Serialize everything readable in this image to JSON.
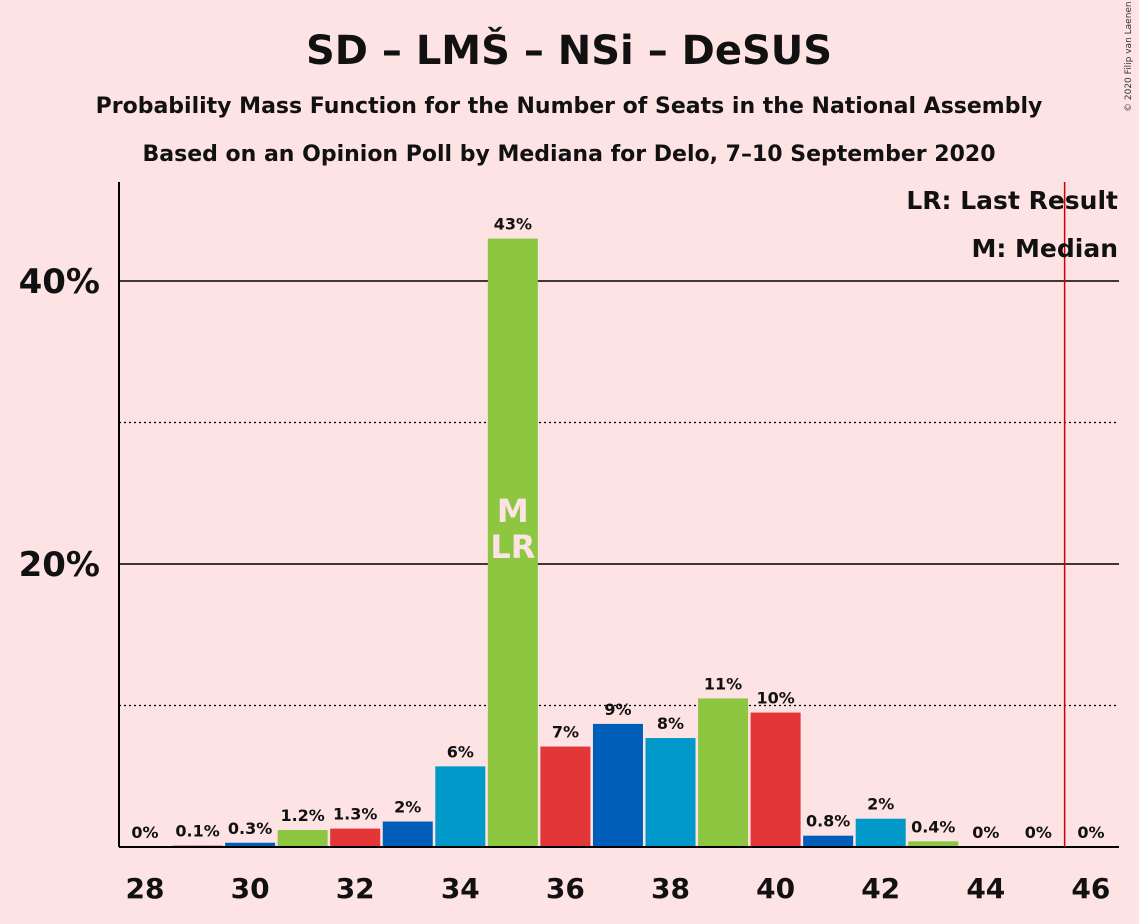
{
  "copyright": "© 2020 Filip van Laenen",
  "chart_data": {
    "type": "bar",
    "title": "SD – LMŠ – NSi – DeSUS",
    "subtitle": "Probability Mass Function for the Number of Seats in the National Assembly",
    "subtitle2": "Based on an Opinion Poll by Mediana for Delo, 7–10 September 2020",
    "xlabel": "",
    "ylabel": "",
    "ylim": [
      0,
      47
    ],
    "yticks_major": [
      20,
      40
    ],
    "yticks_major_labels": [
      "20%",
      "40%"
    ],
    "yticks_minor": [
      10,
      30
    ],
    "x_tick_labels": [
      "28",
      "30",
      "32",
      "34",
      "36",
      "38",
      "40",
      "42",
      "44",
      "46"
    ],
    "x": [
      28,
      29,
      30,
      31,
      32,
      33,
      34,
      35,
      36,
      37,
      38,
      39,
      40,
      41,
      42,
      43,
      44,
      45,
      46
    ],
    "values": [
      0,
      0.1,
      0.3,
      1.2,
      1.3,
      1.8,
      5.7,
      43,
      7.1,
      8.7,
      7.7,
      10.5,
      9.5,
      0.8,
      2.0,
      0.4,
      0,
      0,
      0
    ],
    "labels": [
      "0%",
      "0.1%",
      "0.3%",
      "1.2%",
      "1.3%",
      "2%",
      "6%",
      "43%",
      "7%",
      "9%",
      "8%",
      "11%",
      "10%",
      "0.8%",
      "2%",
      "0.4%",
      "0%",
      "0%",
      "0%"
    ],
    "bar_colors": [
      "#005EB8",
      "#E23639",
      "#005EB8",
      "#8DC641",
      "#E23639",
      "#005EB8",
      "#0099C9",
      "#8DC641",
      "#E23639",
      "#005EB8",
      "#0099C9",
      "#8DC641",
      "#E23639",
      "#005EB8",
      "#0099C9",
      "#8DC641",
      "#E23639",
      "#005EB8",
      "#0099C9"
    ],
    "median_seat": 35,
    "median_marker": "M",
    "last_result_seat": 35,
    "last_result_marker": "LR",
    "majority_line_x": 45.5,
    "majority_line_color": "#CC0000",
    "legend": [
      "LR: Last Result",
      "M: Median"
    ],
    "legend_position": "top-right",
    "background": "#FDE3E4"
  }
}
